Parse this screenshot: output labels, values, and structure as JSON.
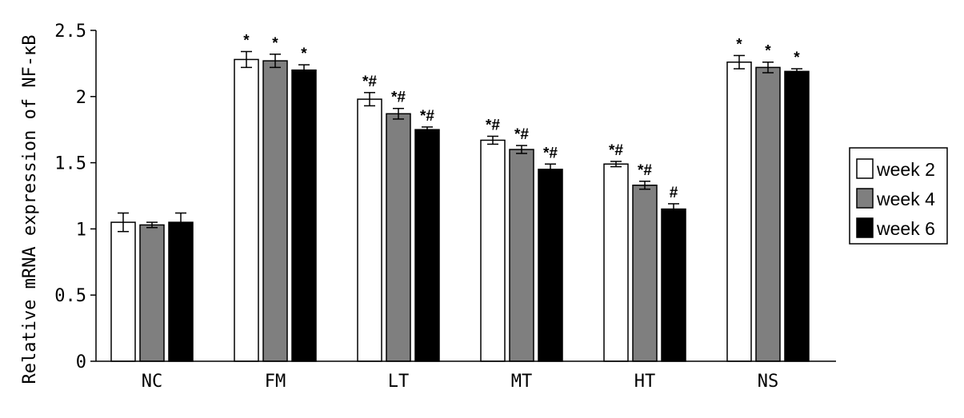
{
  "chart_data": {
    "type": "bar",
    "title": "",
    "xlabel": "",
    "ylabel": "Relative mRNA expression of NF-κB",
    "ylim": [
      0,
      2.5
    ],
    "yticks": [
      "0",
      "0.5",
      "1",
      "1.5",
      "2",
      "2.5"
    ],
    "categories": [
      "NC",
      "FM",
      "LT",
      "MT",
      "HT",
      "NS"
    ],
    "legend_position": "right",
    "series": [
      {
        "name": "week 2",
        "color": "#ffffff",
        "values": [
          1.05,
          2.28,
          1.98,
          1.67,
          1.49,
          2.26
        ],
        "errors": [
          0.07,
          0.06,
          0.05,
          0.03,
          0.02,
          0.05
        ],
        "markers": [
          "",
          "*",
          "*#",
          "*#",
          "*#",
          "*"
        ]
      },
      {
        "name": "week 4",
        "color": "#7f7f7f",
        "values": [
          1.03,
          2.27,
          1.87,
          1.6,
          1.33,
          2.22
        ],
        "errors": [
          0.02,
          0.05,
          0.04,
          0.03,
          0.03,
          0.04
        ],
        "markers": [
          "",
          "*",
          "*#",
          "*#",
          "*#",
          "*"
        ]
      },
      {
        "name": "week 6",
        "color": "#000000",
        "values": [
          1.05,
          2.2,
          1.75,
          1.45,
          1.15,
          2.19
        ],
        "errors": [
          0.07,
          0.04,
          0.02,
          0.04,
          0.04,
          0.02
        ],
        "markers": [
          "",
          "*",
          "*#",
          "*#",
          "#",
          "*"
        ]
      }
    ]
  }
}
